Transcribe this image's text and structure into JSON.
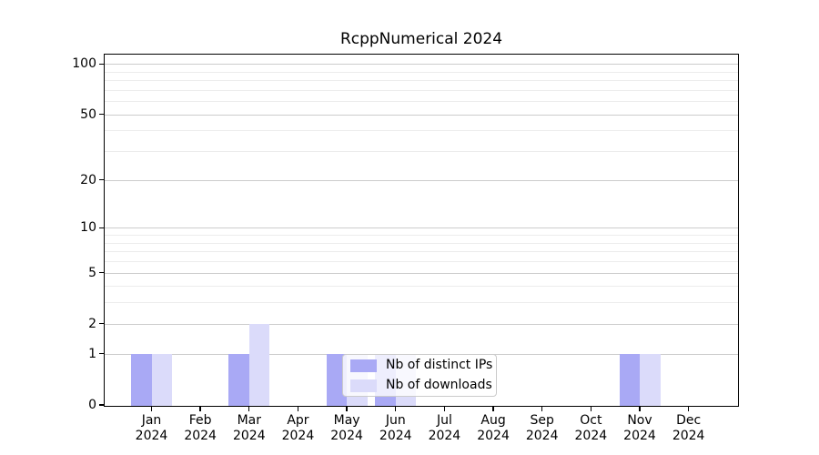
{
  "chart_data": {
    "type": "bar",
    "title": "RcppNumerical 2024",
    "categories": [
      "Jan",
      "Feb",
      "Mar",
      "Apr",
      "May",
      "Jun",
      "Jul",
      "Aug",
      "Sep",
      "Oct",
      "Nov",
      "Dec"
    ],
    "category_year": "2024",
    "series": [
      {
        "name": "Nb of distinct IPs",
        "color": "#a9a9f5",
        "values": [
          1,
          0,
          1,
          0,
          1,
          1,
          0,
          0,
          0,
          0,
          1,
          0
        ]
      },
      {
        "name": "Nb of downloads",
        "color": "#dbdbfa",
        "values": [
          1,
          0,
          2,
          0,
          1,
          1,
          0,
          0,
          0,
          0,
          1,
          0
        ]
      }
    ],
    "xlabel": "",
    "ylabel": "",
    "y_scale": "log1p",
    "y_ticks": [
      0,
      1,
      2,
      5,
      10,
      20,
      50,
      100
    ],
    "y_minor_gridlines": [
      3,
      4,
      6,
      7,
      8,
      9,
      30,
      40,
      60,
      70,
      80,
      90
    ],
    "ylim": [
      0,
      115
    ],
    "grid": true,
    "legend_position": "lower-center-inside"
  },
  "colors": {
    "major_grid": "#cccccc",
    "minor_grid": "#ececec",
    "spine": "#000000",
    "legend_border": "#cbcbcb",
    "legend_bg": "rgba(255,255,255,0.8)"
  }
}
